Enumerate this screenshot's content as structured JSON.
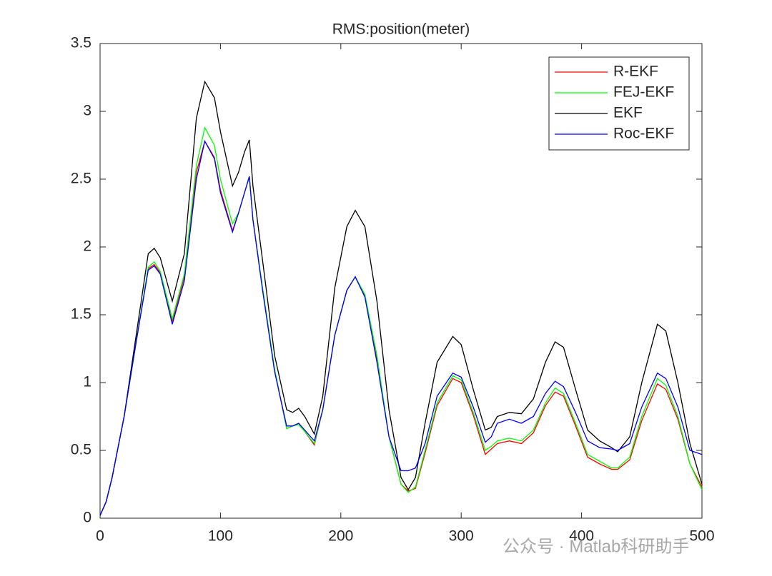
{
  "chart_data": {
    "type": "line",
    "title": "RMS:position(meter)",
    "x": [
      0,
      5,
      10,
      20,
      30,
      40,
      45,
      50,
      60,
      70,
      80,
      87,
      95,
      100,
      110,
      115,
      120,
      124,
      127,
      135,
      145,
      155,
      160,
      165,
      170,
      178,
      185,
      195,
      205,
      212,
      220,
      230,
      240,
      250,
      256,
      262,
      270,
      280,
      293,
      300,
      310,
      320,
      325,
      330,
      340,
      350,
      360,
      370,
      378,
      385,
      395,
      405,
      415,
      425,
      430,
      440,
      450,
      463,
      470,
      480,
      490,
      500
    ],
    "series": [
      {
        "name": "R-EKF",
        "color": "#ff0000",
        "values": [
          0.02,
          0.12,
          0.3,
          0.75,
          1.3,
          1.84,
          1.87,
          1.81,
          1.45,
          1.78,
          2.55,
          2.78,
          2.66,
          2.42,
          2.12,
          2.25,
          2.4,
          2.52,
          2.2,
          1.69,
          1.09,
          0.66,
          0.68,
          0.7,
          0.64,
          0.54,
          0.8,
          1.35,
          1.68,
          1.78,
          1.64,
          1.18,
          0.6,
          0.25,
          0.2,
          0.22,
          0.48,
          0.83,
          1.03,
          1.0,
          0.76,
          0.47,
          0.51,
          0.55,
          0.57,
          0.55,
          0.63,
          0.83,
          0.93,
          0.9,
          0.68,
          0.45,
          0.4,
          0.36,
          0.36,
          0.43,
          0.72,
          0.99,
          0.95,
          0.73,
          0.4,
          0.23
        ]
      },
      {
        "name": "FEJ-EKF",
        "color": "#00ff00",
        "values": [
          0.02,
          0.12,
          0.3,
          0.75,
          1.3,
          1.85,
          1.89,
          1.82,
          1.47,
          1.8,
          2.6,
          2.88,
          2.75,
          2.5,
          2.17,
          2.25,
          2.4,
          2.52,
          2.2,
          1.7,
          1.1,
          0.66,
          0.68,
          0.69,
          0.64,
          0.55,
          0.8,
          1.35,
          1.68,
          1.78,
          1.65,
          1.2,
          0.6,
          0.25,
          0.19,
          0.23,
          0.5,
          0.85,
          1.05,
          1.02,
          0.78,
          0.5,
          0.53,
          0.57,
          0.59,
          0.57,
          0.65,
          0.85,
          0.96,
          0.92,
          0.7,
          0.47,
          0.42,
          0.37,
          0.37,
          0.45,
          0.75,
          1.03,
          0.98,
          0.75,
          0.4,
          0.21
        ]
      },
      {
        "name": "EKF",
        "color": "#000000",
        "values": [
          0.02,
          0.12,
          0.3,
          0.75,
          1.35,
          1.95,
          1.99,
          1.92,
          1.6,
          1.95,
          2.95,
          3.22,
          3.1,
          2.85,
          2.45,
          2.55,
          2.7,
          2.79,
          2.45,
          1.9,
          1.2,
          0.8,
          0.78,
          0.81,
          0.75,
          0.62,
          0.9,
          1.7,
          2.15,
          2.27,
          2.15,
          1.6,
          0.8,
          0.3,
          0.21,
          0.3,
          0.7,
          1.15,
          1.34,
          1.28,
          0.95,
          0.65,
          0.67,
          0.75,
          0.78,
          0.77,
          0.88,
          1.15,
          1.3,
          1.26,
          0.95,
          0.65,
          0.57,
          0.52,
          0.49,
          0.6,
          1.0,
          1.43,
          1.38,
          1.0,
          0.55,
          0.25
        ]
      },
      {
        "name": "Roc-EKF",
        "color": "#0000ff",
        "values": [
          0.02,
          0.12,
          0.3,
          0.75,
          1.3,
          1.83,
          1.86,
          1.8,
          1.43,
          1.75,
          2.5,
          2.78,
          2.65,
          2.4,
          2.11,
          2.25,
          2.4,
          2.52,
          2.2,
          1.68,
          1.08,
          0.68,
          0.68,
          0.7,
          0.65,
          0.57,
          0.8,
          1.35,
          1.68,
          1.78,
          1.63,
          1.15,
          0.6,
          0.35,
          0.35,
          0.37,
          0.55,
          0.9,
          1.07,
          1.04,
          0.82,
          0.56,
          0.6,
          0.7,
          0.73,
          0.7,
          0.75,
          0.92,
          1.01,
          0.97,
          0.78,
          0.57,
          0.52,
          0.51,
          0.5,
          0.55,
          0.82,
          1.07,
          1.03,
          0.82,
          0.5,
          0.47
        ]
      }
    ],
    "xlim": [
      0,
      500
    ],
    "xticks": [
      0,
      100,
      200,
      300,
      400,
      500
    ],
    "ylim": [
      0,
      3.5
    ],
    "yticks": [
      0,
      0.5,
      1,
      1.5,
      2,
      2.5,
      3,
      3.5
    ],
    "legend": "top-right",
    "watermark": "公众号 · Matlab科研助手"
  }
}
